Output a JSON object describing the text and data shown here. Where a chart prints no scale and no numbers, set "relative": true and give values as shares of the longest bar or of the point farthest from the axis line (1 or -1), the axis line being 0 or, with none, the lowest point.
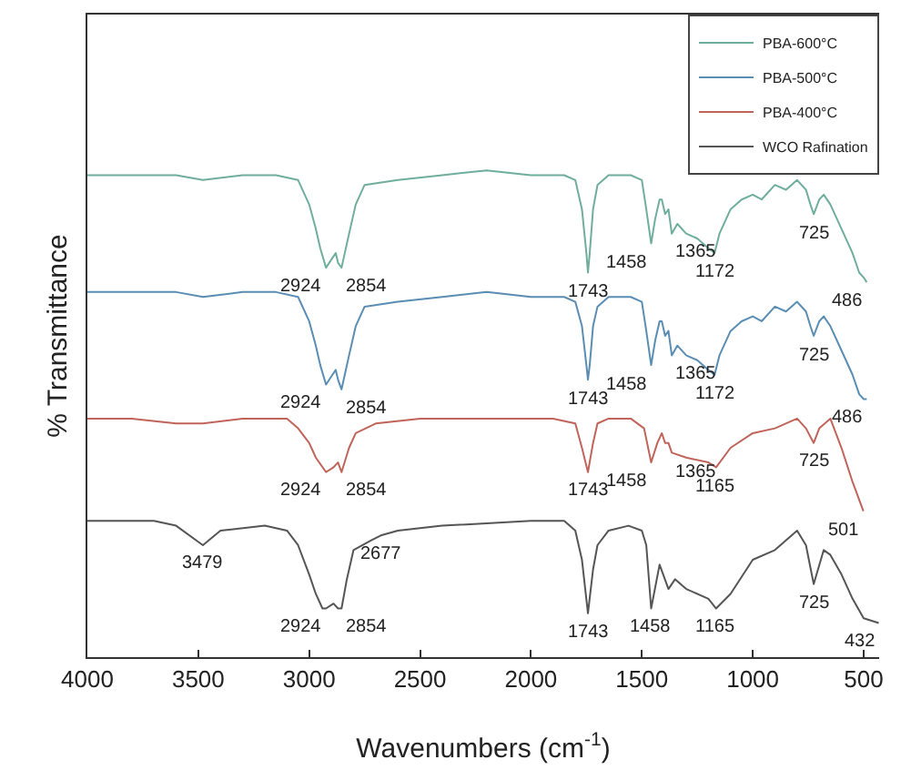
{
  "chart_data": {
    "type": "line",
    "relative": true,
    "xlabel": "Wavenumbers (cm$^{-1}$)",
    "ylabel": "% Transmittance",
    "xlim": [
      4000,
      430
    ],
    "xticks": [
      4000,
      3500,
      3000,
      2500,
      2000,
      1500,
      1000,
      500
    ],
    "legend": "top right",
    "series": [
      {
        "name": "PBA-600°C",
        "color": "#6fae9c",
        "x": [
          4000,
          3800,
          3600,
          3479,
          3300,
          3150,
          3050,
          3000,
          2970,
          2950,
          2924,
          2895,
          2880,
          2870,
          2854,
          2820,
          2790,
          2750,
          2600,
          2400,
          2200,
          2000,
          1850,
          1800,
          1770,
          1750,
          1743,
          1735,
          1720,
          1700,
          1650,
          1550,
          1500,
          1480,
          1458,
          1440,
          1420,
          1410,
          1395,
          1380,
          1365,
          1340,
          1300,
          1250,
          1200,
          1172,
          1150,
          1100,
          1050,
          1000,
          960,
          900,
          850,
          800,
          760,
          740,
          725,
          700,
          680,
          650,
          600,
          550,
          520,
          500,
          486
        ],
        "values": [
          0.99,
          0.99,
          0.99,
          0.98,
          0.99,
          0.99,
          0.98,
          0.93,
          0.88,
          0.84,
          0.8,
          0.82,
          0.83,
          0.81,
          0.8,
          0.87,
          0.93,
          0.97,
          0.98,
          0.99,
          1,
          0.99,
          0.99,
          0.98,
          0.92,
          0.83,
          0.79,
          0.83,
          0.92,
          0.97,
          0.99,
          0.99,
          0.98,
          0.92,
          0.85,
          0.9,
          0.94,
          0.94,
          0.91,
          0.92,
          0.87,
          0.89,
          0.87,
          0.86,
          0.84,
          0.83,
          0.87,
          0.92,
          0.94,
          0.95,
          0.94,
          0.97,
          0.96,
          0.98,
          0.96,
          0.93,
          0.91,
          0.94,
          0.95,
          0.93,
          0.88,
          0.83,
          0.79,
          0.78,
          0.77
        ]
      },
      {
        "name": "PBA-500°C",
        "color": "#5a8db3",
        "x": [
          4000,
          3800,
          3600,
          3479,
          3300,
          3150,
          3050,
          3000,
          2970,
          2950,
          2924,
          2895,
          2880,
          2870,
          2854,
          2820,
          2790,
          2750,
          2600,
          2400,
          2200,
          2000,
          1850,
          1800,
          1770,
          1750,
          1743,
          1735,
          1720,
          1700,
          1650,
          1550,
          1500,
          1480,
          1458,
          1440,
          1420,
          1410,
          1395,
          1380,
          1365,
          1340,
          1300,
          1250,
          1200,
          1172,
          1150,
          1100,
          1050,
          1000,
          960,
          900,
          850,
          800,
          760,
          740,
          725,
          700,
          680,
          650,
          600,
          550,
          520,
          500,
          486
        ],
        "values": [
          0.75,
          0.75,
          0.75,
          0.74,
          0.75,
          0.75,
          0.74,
          0.69,
          0.64,
          0.6,
          0.56,
          0.58,
          0.59,
          0.57,
          0.55,
          0.62,
          0.68,
          0.72,
          0.73,
          0.74,
          0.75,
          0.74,
          0.74,
          0.73,
          0.68,
          0.6,
          0.57,
          0.6,
          0.68,
          0.72,
          0.74,
          0.74,
          0.73,
          0.67,
          0.6,
          0.65,
          0.69,
          0.69,
          0.66,
          0.67,
          0.62,
          0.64,
          0.62,
          0.61,
          0.59,
          0.58,
          0.62,
          0.67,
          0.69,
          0.7,
          0.69,
          0.72,
          0.71,
          0.73,
          0.71,
          0.68,
          0.66,
          0.69,
          0.7,
          0.68,
          0.63,
          0.58,
          0.54,
          0.53,
          0.53
        ]
      },
      {
        "name": "PBA-400°C",
        "color": "#c0645a",
        "x": [
          4000,
          3800,
          3600,
          3479,
          3300,
          3100,
          3050,
          3000,
          2970,
          2924,
          2890,
          2870,
          2854,
          2820,
          2790,
          2700,
          2500,
          2200,
          1900,
          1800,
          1770,
          1743,
          1720,
          1700,
          1650,
          1550,
          1490,
          1458,
          1430,
          1410,
          1395,
          1380,
          1365,
          1300,
          1200,
          1165,
          1100,
          1000,
          900,
          800,
          760,
          725,
          700,
          650,
          600,
          550,
          501
        ],
        "values": [
          0.49,
          0.49,
          0.48,
          0.48,
          0.49,
          0.49,
          0.47,
          0.44,
          0.41,
          0.38,
          0.39,
          0.4,
          0.38,
          0.43,
          0.46,
          0.48,
          0.49,
          0.49,
          0.49,
          0.48,
          0.43,
          0.38,
          0.44,
          0.48,
          0.49,
          0.49,
          0.47,
          0.4,
          0.44,
          0.46,
          0.44,
          0.44,
          0.42,
          0.41,
          0.4,
          0.39,
          0.43,
          0.46,
          0.47,
          0.49,
          0.47,
          0.44,
          0.47,
          0.49,
          0.43,
          0.36,
          0.3
        ]
      },
      {
        "name": "WCO Rafination",
        "color": "#555555",
        "x": [
          4000,
          3800,
          3700,
          3600,
          3479,
          3400,
          3200,
          3100,
          3050,
          3000,
          2970,
          2940,
          2924,
          2890,
          2870,
          2854,
          2830,
          2800,
          2720,
          2677,
          2600,
          2400,
          2000,
          1850,
          1800,
          1770,
          1743,
          1720,
          1700,
          1650,
          1560,
          1500,
          1480,
          1458,
          1420,
          1380,
          1350,
          1300,
          1200,
          1165,
          1100,
          1000,
          900,
          800,
          760,
          725,
          680,
          650,
          600,
          550,
          500,
          432
        ],
        "values": [
          0.28,
          0.28,
          0.28,
          0.27,
          0.23,
          0.26,
          0.27,
          0.26,
          0.23,
          0.17,
          0.13,
          0.1,
          0.1,
          0.11,
          0.1,
          0.1,
          0.16,
          0.22,
          0.24,
          0.25,
          0.26,
          0.27,
          0.28,
          0.28,
          0.26,
          0.2,
          0.09,
          0.18,
          0.23,
          0.26,
          0.27,
          0.26,
          0.23,
          0.1,
          0.19,
          0.14,
          0.16,
          0.14,
          0.12,
          0.1,
          0.13,
          0.2,
          0.22,
          0.26,
          0.23,
          0.15,
          0.22,
          0.21,
          0.17,
          0.12,
          0.08,
          0.07
        ]
      }
    ],
    "annotations": [
      {
        "text": "2924",
        "x": 2924,
        "y": 0.8
      },
      {
        "text": "2854",
        "x": 2854,
        "y": 0.8
      },
      {
        "text": "1743",
        "x": 1743,
        "y": 0.79
      },
      {
        "text": "1458",
        "x": 1458,
        "y": 0.85
      },
      {
        "text": "1365",
        "x": 1365,
        "y": 0.87
      },
      {
        "text": "1172",
        "x": 1172,
        "y": 0.83
      },
      {
        "text": "725",
        "x": 725,
        "y": 0.91
      },
      {
        "text": "486",
        "x": 486,
        "y": 0.77
      },
      {
        "text": "2924",
        "x": 2924,
        "y": 0.56
      },
      {
        "text": "2854",
        "x": 2854,
        "y": 0.55
      },
      {
        "text": "1743",
        "x": 1743,
        "y": 0.57
      },
      {
        "text": "1458",
        "x": 1458,
        "y": 0.6
      },
      {
        "text": "1365",
        "x": 1365,
        "y": 0.62
      },
      {
        "text": "1172",
        "x": 1172,
        "y": 0.58
      },
      {
        "text": "725",
        "x": 725,
        "y": 0.66
      },
      {
        "text": "486",
        "x": 486,
        "y": 0.53
      },
      {
        "text": "2924",
        "x": 2924,
        "y": 0.38
      },
      {
        "text": "2854",
        "x": 2854,
        "y": 0.38
      },
      {
        "text": "1743",
        "x": 1743,
        "y": 0.38
      },
      {
        "text": "1458",
        "x": 1458,
        "y": 0.4
      },
      {
        "text": "1365",
        "x": 1365,
        "y": 0.42
      },
      {
        "text": "1165",
        "x": 1165,
        "y": 0.39
      },
      {
        "text": "725",
        "x": 725,
        "y": 0.44
      },
      {
        "text": "501",
        "x": 501,
        "y": 0.3
      },
      {
        "text": "3479",
        "x": 3479,
        "y": 0.23
      },
      {
        "text": "2677",
        "x": 2677,
        "y": 0.25
      },
      {
        "text": "2924",
        "x": 2924,
        "y": 0.1
      },
      {
        "text": "2854",
        "x": 2854,
        "y": 0.1
      },
      {
        "text": "1743",
        "x": 1743,
        "y": 0.09
      },
      {
        "text": "1458",
        "x": 1458,
        "y": 0.1
      },
      {
        "text": "1165",
        "x": 1165,
        "y": 0.1
      },
      {
        "text": "725",
        "x": 725,
        "y": 0.15
      },
      {
        "text": "432",
        "x": 432,
        "y": 0.07
      }
    ]
  }
}
